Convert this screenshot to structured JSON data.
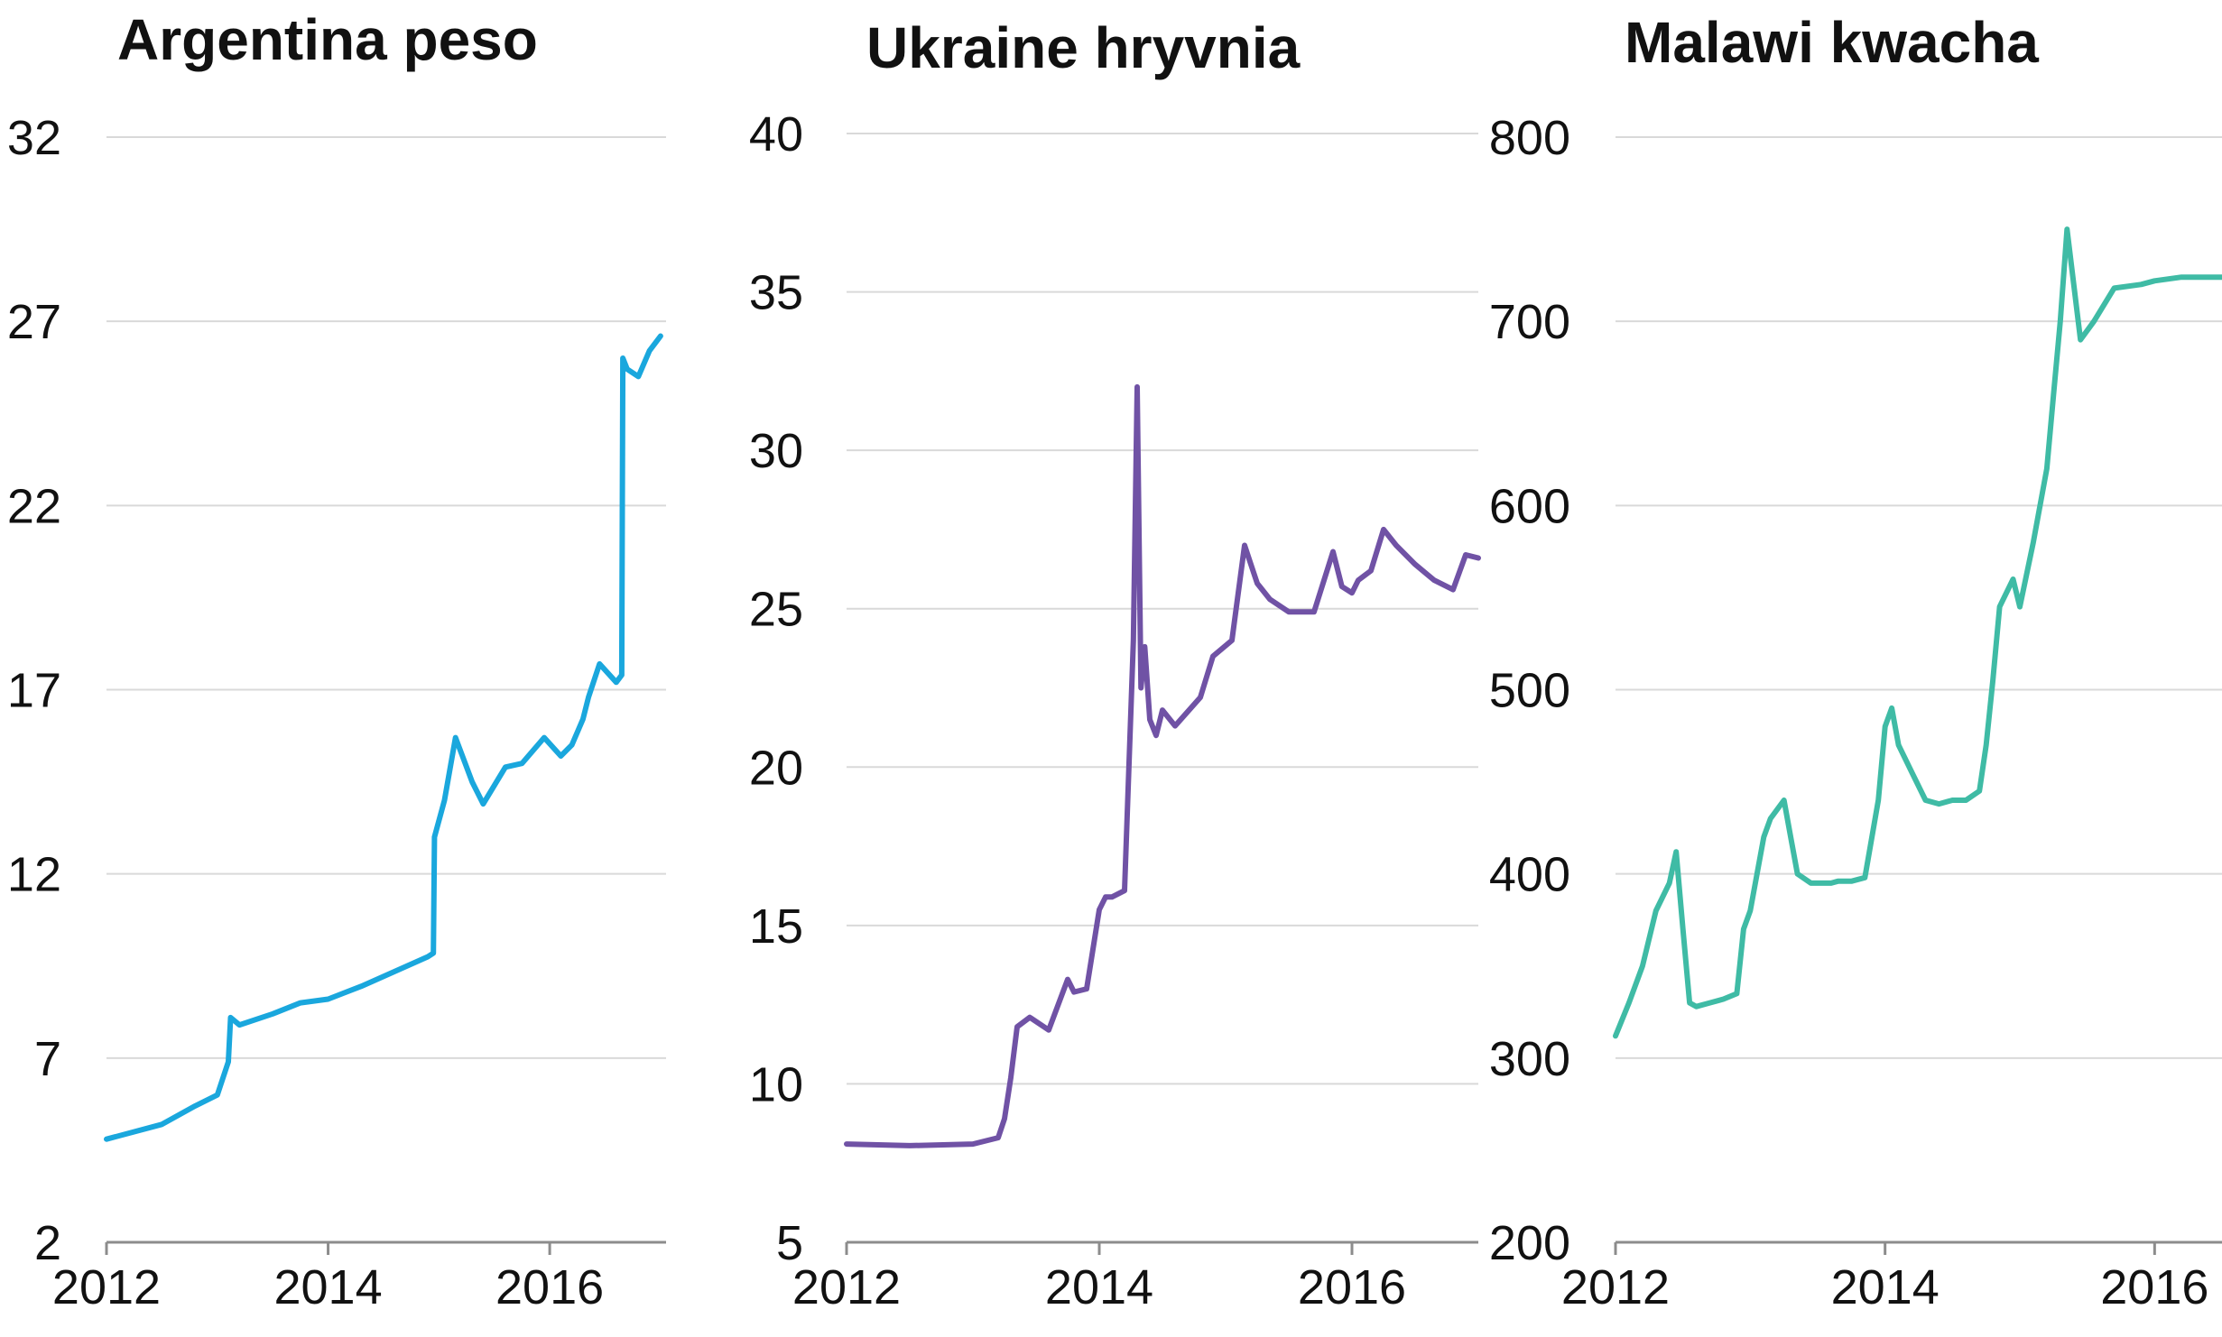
{
  "chart_data": [
    {
      "type": "line",
      "title": "Argentina peso",
      "color": "#1aa7dd",
      "ylim": [
        2,
        32
      ],
      "yticks": [
        2,
        7,
        12,
        17,
        22,
        27,
        32
      ],
      "xlim": [
        2012,
        2017.05
      ],
      "xticks": [
        2012,
        2014,
        2016
      ],
      "ytick_labels": [
        "2",
        "7",
        "12",
        "17",
        "22",
        "27",
        "32"
      ],
      "xtick_labels": [
        "2012",
        "2014",
        "2016"
      ],
      "series": [
        {
          "x": [
            2012.0,
            2012.5,
            2012.8,
            2013.0,
            2013.1,
            2013.12,
            2013.2,
            2013.5,
            2013.75,
            2014.0,
            2014.3,
            2014.6,
            2014.9,
            2014.95,
            2014.96,
            2015.05,
            2015.15,
            2015.3,
            2015.4,
            2015.6,
            2015.75,
            2015.95,
            2016.1,
            2016.2,
            2016.3,
            2016.35,
            2016.45,
            2016.6,
            2016.65,
            2016.66,
            2016.7,
            2016.8,
            2016.9,
            2017.0
          ],
          "y": [
            4.8,
            5.2,
            5.7,
            6.0,
            6.9,
            8.1,
            7.9,
            8.2,
            8.5,
            8.6,
            8.95,
            9.35,
            9.75,
            9.85,
            13.0,
            14.0,
            15.7,
            14.5,
            13.9,
            14.9,
            15.0,
            15.7,
            15.2,
            15.5,
            16.2,
            16.8,
            17.7,
            17.2,
            17.4,
            26.0,
            25.7,
            25.5,
            26.2,
            26.6
          ]
        }
      ]
    },
    {
      "type": "line",
      "title": "Ukraine hryvnia",
      "color": "#7052a5",
      "ylim": [
        5,
        40
      ],
      "yticks": [
        5,
        10,
        15,
        20,
        25,
        30,
        35,
        40
      ],
      "xlim": [
        2012,
        2017.0
      ],
      "xticks": [
        2012,
        2014,
        2016
      ],
      "ytick_labels": [
        "5",
        "10",
        "15",
        "20",
        "25",
        "30",
        "35",
        "40"
      ],
      "xtick_labels": [
        "2012",
        "2014",
        "2016"
      ],
      "series": [
        {
          "x": [
            2012.0,
            2012.5,
            2013.0,
            2013.1,
            2013.2,
            2013.25,
            2013.3,
            2013.35,
            2013.45,
            2013.6,
            2013.75,
            2013.8,
            2013.9,
            2014.0,
            2014.05,
            2014.1,
            2014.2,
            2014.27,
            2014.3,
            2014.33,
            2014.36,
            2014.4,
            2014.45,
            2014.5,
            2014.6,
            2014.8,
            2014.9,
            2015.05,
            2015.15,
            2015.25,
            2015.35,
            2015.5,
            2015.7,
            2015.85,
            2015.92,
            2016.0,
            2016.05,
            2016.15,
            2016.25,
            2016.35,
            2016.5,
            2016.65,
            2016.8,
            2016.9,
            2017.0
          ],
          "y": [
            8.1,
            8.05,
            8.1,
            8.2,
            8.3,
            8.9,
            10.2,
            11.8,
            12.1,
            11.7,
            13.3,
            12.9,
            13.0,
            15.5,
            15.9,
            15.9,
            16.1,
            24.0,
            32.0,
            22.5,
            23.8,
            21.5,
            21.0,
            21.8,
            21.3,
            22.2,
            23.5,
            24.0,
            27.0,
            25.8,
            25.3,
            24.9,
            24.9,
            26.8,
            25.7,
            25.5,
            25.9,
            26.2,
            27.5,
            27.0,
            26.4,
            25.9,
            25.6,
            26.7,
            26.6
          ]
        }
      ]
    },
    {
      "type": "line",
      "title": "Malawi kwacha",
      "color": "#3fbba5",
      "ylim": [
        200,
        800
      ],
      "yticks": [
        200,
        300,
        400,
        500,
        600,
        700,
        800
      ],
      "xlim": [
        2012,
        2016.5
      ],
      "xticks": [
        2012,
        2014,
        2016
      ],
      "ytick_labels": [
        "200",
        "300",
        "400",
        "500",
        "600",
        "700",
        "800"
      ],
      "xtick_labels": [
        "2012",
        "2014",
        "2016"
      ],
      "series": [
        {
          "x": [
            2012.0,
            2012.1,
            2012.2,
            2012.3,
            2012.4,
            2012.45,
            2012.5,
            2012.55,
            2012.6,
            2012.7,
            2012.8,
            2012.9,
            2012.95,
            2013.0,
            2013.1,
            2013.15,
            2013.25,
            2013.3,
            2013.35,
            2013.45,
            2013.55,
            2013.6,
            2013.65,
            2013.75,
            2013.85,
            2013.95,
            2014.0,
            2014.05,
            2014.1,
            2014.2,
            2014.3,
            2014.4,
            2014.5,
            2014.6,
            2014.7,
            2014.75,
            2014.8,
            2014.85,
            2014.95,
            2015.0,
            2015.1,
            2015.2,
            2015.25,
            2015.3,
            2015.35,
            2015.45,
            2015.55,
            2015.7,
            2015.9,
            2016.0,
            2016.2,
            2016.5
          ],
          "y": [
            312,
            330,
            350,
            380,
            395,
            412,
            370,
            330,
            328,
            330,
            332,
            335,
            370,
            380,
            420,
            430,
            440,
            420,
            400,
            395,
            395,
            395,
            396,
            396,
            398,
            440,
            480,
            490,
            470,
            455,
            440,
            438,
            440,
            440,
            445,
            470,
            505,
            545,
            560,
            545,
            580,
            620,
            660,
            700,
            750,
            690,
            700,
            718,
            720,
            722,
            724,
            724
          ]
        }
      ]
    }
  ]
}
